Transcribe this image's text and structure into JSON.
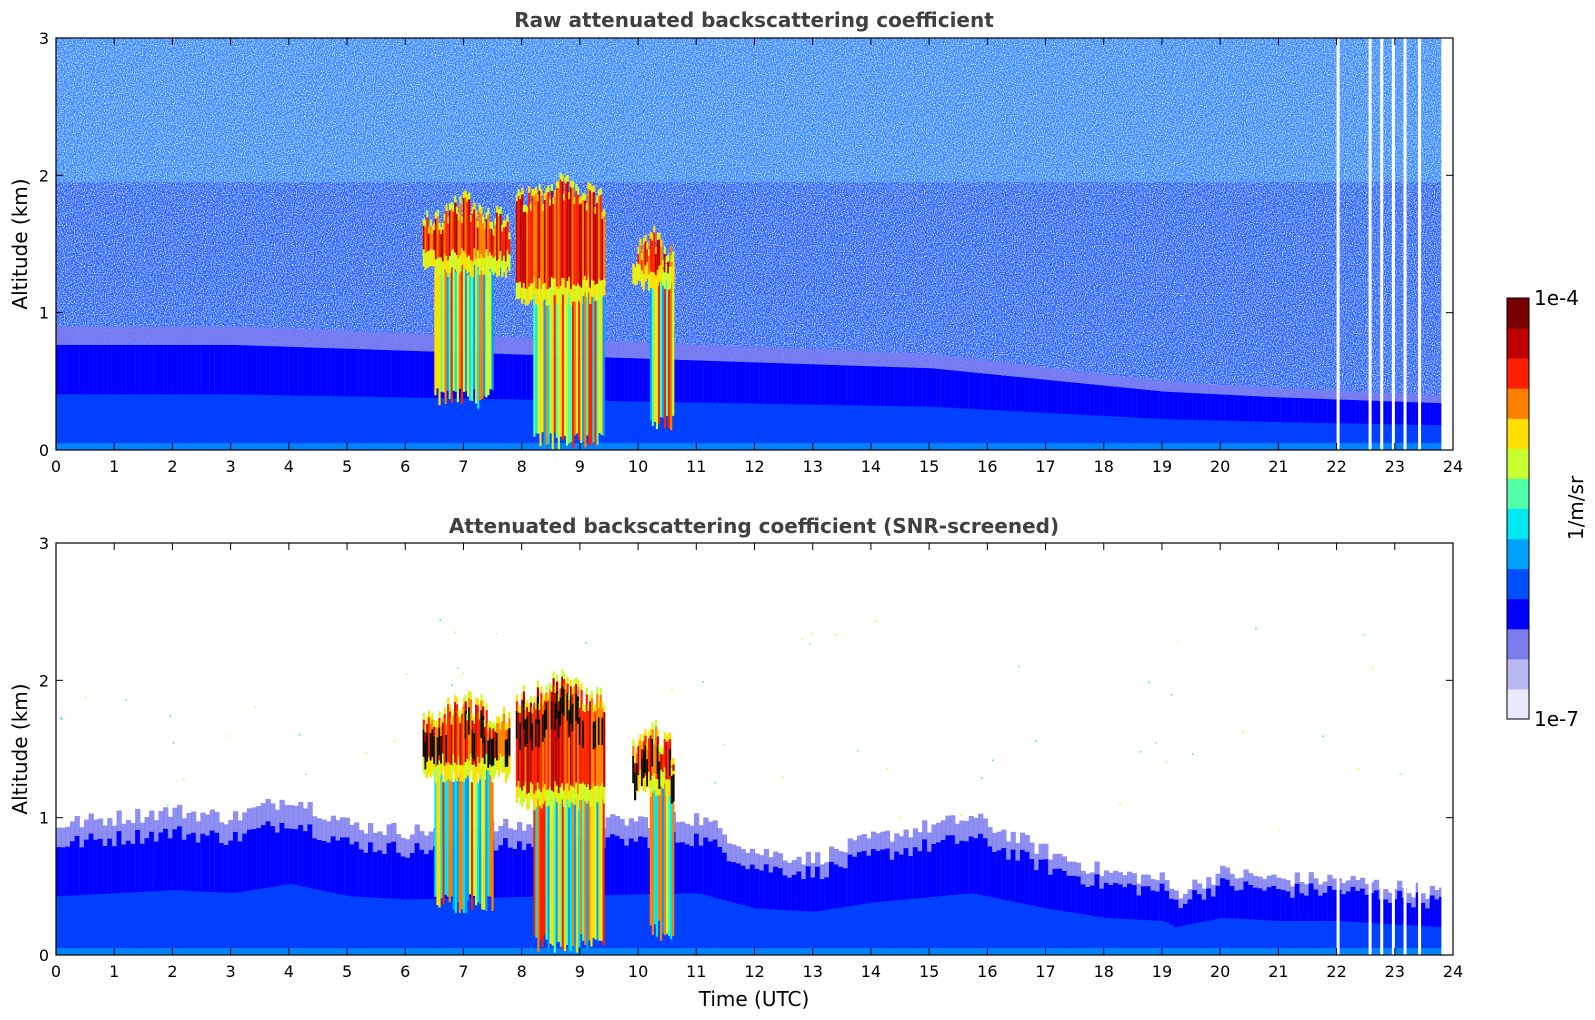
{
  "chart_data": [
    {
      "type": "heatmap",
      "title": "Raw attenuated backscattering coefficient",
      "xlabel": "",
      "ylabel": "Altitude (km)",
      "xlim": [
        0,
        24
      ],
      "ylim": [
        0,
        3
      ],
      "xticks": [
        "0",
        "1",
        "2",
        "3",
        "4",
        "5",
        "6",
        "7",
        "8",
        "9",
        "10",
        "11",
        "12",
        "13",
        "14",
        "15",
        "16",
        "17",
        "18",
        "19",
        "20",
        "21",
        "22",
        "23",
        "24"
      ],
      "yticks": [
        "0",
        "1",
        "2",
        "3"
      ],
      "boundary_layer_top_km": [
        [
          0,
          0.9
        ],
        [
          3,
          0.9
        ],
        [
          6,
          0.85
        ],
        [
          9,
          0.8
        ],
        [
          12,
          0.75
        ],
        [
          15,
          0.7
        ],
        [
          17,
          0.6
        ],
        [
          19,
          0.5
        ],
        [
          21,
          0.45
        ],
        [
          23.8,
          0.4
        ]
      ],
      "cloud_events": [
        {
          "t_start": 6.3,
          "t_end": 7.8,
          "base_km": 1.4,
          "top_km": 1.8
        },
        {
          "t_start": 7.9,
          "t_end": 9.4,
          "base_km": 1.2,
          "top_km": 1.95
        },
        {
          "t_start": 9.9,
          "t_end": 10.6,
          "base_km": 1.3,
          "top_km": 1.55
        }
      ],
      "precipitation_streaks": [
        {
          "t_start": 6.5,
          "t_end": 7.5,
          "bottom_km": 0.3
        },
        {
          "t_start": 8.2,
          "t_end": 9.4,
          "bottom_km": 0.0
        },
        {
          "t_start": 10.2,
          "t_end": 10.6,
          "bottom_km": 0.1
        }
      ],
      "data_gaps_utc": [
        22.0,
        22.55,
        22.75,
        22.95,
        23.15,
        23.4
      ],
      "noise_above_boundary_layer": true
    },
    {
      "type": "heatmap",
      "title": "Attenuated backscattering coefficient (SNR-screened)",
      "xlabel": "Time (UTC)",
      "ylabel": "Altitude (km)",
      "xlim": [
        0,
        24
      ],
      "ylim": [
        0,
        3
      ],
      "xticks": [
        "0",
        "1",
        "2",
        "3",
        "4",
        "5",
        "6",
        "7",
        "8",
        "9",
        "10",
        "11",
        "12",
        "13",
        "14",
        "15",
        "16",
        "17",
        "18",
        "19",
        "20",
        "21",
        "22",
        "23",
        "24"
      ],
      "yticks": [
        "0",
        "1",
        "2",
        "3"
      ],
      "boundary_layer_top_km": [
        [
          0,
          0.95
        ],
        [
          2,
          1.05
        ],
        [
          3,
          1.0
        ],
        [
          4,
          1.15
        ],
        [
          5,
          0.95
        ],
        [
          6,
          0.9
        ],
        [
          11,
          1.0
        ],
        [
          12,
          0.75
        ],
        [
          13,
          0.7
        ],
        [
          14,
          0.85
        ],
        [
          15.7,
          1.0
        ],
        [
          17,
          0.75
        ],
        [
          18,
          0.6
        ],
        [
          19,
          0.55
        ],
        [
          19.2,
          0.45
        ],
        [
          20,
          0.6
        ],
        [
          21,
          0.55
        ],
        [
          22,
          0.55
        ],
        [
          23.8,
          0.45
        ]
      ],
      "cloud_events": [
        {
          "t_start": 6.3,
          "t_end": 7.8,
          "base_km": 1.4,
          "top_km": 1.85
        },
        {
          "t_start": 7.9,
          "t_end": 9.4,
          "base_km": 1.2,
          "top_km": 2.0
        },
        {
          "t_start": 9.9,
          "t_end": 10.6,
          "base_km": 1.3,
          "top_km": 1.65
        }
      ],
      "precipitation_streaks": [
        {
          "t_start": 6.5,
          "t_end": 7.5,
          "bottom_km": 0.3
        },
        {
          "t_start": 8.2,
          "t_end": 9.4,
          "bottom_km": 0.0
        },
        {
          "t_start": 10.2,
          "t_end": 10.6,
          "bottom_km": 0.1
        }
      ],
      "data_gaps_utc": [
        22.0,
        22.55,
        22.75,
        22.95,
        23.15,
        23.4
      ],
      "noise_above_boundary_layer": false
    }
  ],
  "colorbar": {
    "label": "1/m/sr",
    "max_label": "1e-4",
    "min_label": "1e-7",
    "scale": "log",
    "colormap": "jet",
    "colors": [
      "#eaeaff",
      "#b8b8f5",
      "#7b7bf0",
      "#0000ff",
      "#0050ff",
      "#00a0ff",
      "#00e8f0",
      "#50ffa8",
      "#c8ff30",
      "#ffe000",
      "#ff8000",
      "#ff2000",
      "#c00000",
      "#780000"
    ]
  }
}
